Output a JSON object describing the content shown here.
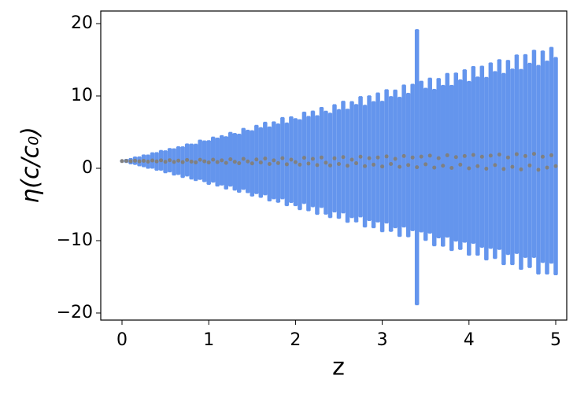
{
  "chart_data": {
    "type": "errorbar",
    "xlabel": "z",
    "ylabel": "η(c/c₀)",
    "xlim": [
      -0.245,
      5.127
    ],
    "ylim": [
      -20.98,
      21.74
    ],
    "xticks": [
      0,
      1,
      2,
      3,
      4,
      5
    ],
    "yticks": [
      -20,
      -10,
      0,
      10,
      20
    ],
    "error_color": "#6495ed",
    "marker_color": "#808080",
    "x": [
      0,
      0.05,
      0.1,
      0.15,
      0.2,
      0.25,
      0.3,
      0.35,
      0.4,
      0.45,
      0.5,
      0.55,
      0.6,
      0.65,
      0.7,
      0.75,
      0.8,
      0.85,
      0.9,
      0.95,
      1,
      1.05,
      1.1,
      1.15,
      1.2,
      1.25,
      1.3,
      1.35,
      1.4,
      1.45,
      1.5,
      1.55,
      1.6,
      1.65,
      1.7,
      1.75,
      1.8,
      1.85,
      1.9,
      1.95,
      2,
      2.05,
      2.1,
      2.15,
      2.2,
      2.25,
      2.3,
      2.35,
      2.4,
      2.45,
      2.5,
      2.55,
      2.6,
      2.65,
      2.7,
      2.75,
      2.8,
      2.85,
      2.9,
      2.95,
      3,
      3.05,
      3.1,
      3.15,
      3.2,
      3.25,
      3.3,
      3.35,
      3.4,
      3.45,
      3.5,
      3.55,
      3.6,
      3.65,
      3.7,
      3.75,
      3.8,
      3.85,
      3.9,
      3.95,
      4,
      4.05,
      4.1,
      4.15,
      4.2,
      4.25,
      4.3,
      4.35,
      4.4,
      4.45,
      4.5,
      4.55,
      4.6,
      4.65,
      4.7,
      4.75,
      4.8,
      4.85,
      4.9,
      4.95,
      5
    ],
    "values": [
      1,
      1.02,
      0.98,
      1.05,
      0.96,
      1.03,
      0.92,
      1.08,
      0.95,
      1.1,
      0.9,
      1.12,
      0.88,
      1.06,
      0.85,
      1.15,
      0.93,
      0.82,
      1.18,
      0.97,
      0.8,
      1.2,
      0.86,
      1.1,
      0.75,
      1.25,
      0.9,
      0.7,
      1.3,
      0.95,
      0.68,
      1.22,
      0.8,
      1.35,
      0.6,
      1.1,
      0.72,
      1.4,
      0.55,
      1.2,
      0.85,
      0.5,
      1.45,
      0.65,
      1.3,
      0.45,
      1.5,
      0.78,
      0.4,
      1.38,
      0.6,
      1.55,
      0.35,
      1.2,
      0.7,
      1.6,
      0.3,
      1.4,
      0.5,
      1.5,
      0.25,
      1.65,
      0.6,
      1.3,
      0.2,
      1.7,
      0.45,
      1.5,
      0.15,
      1.62,
      0.55,
      1.75,
      0.1,
      1.4,
      0.35,
      1.8,
      0.05,
      1.55,
      0.5,
      1.7,
      0,
      1.85,
      0.3,
      1.6,
      -0.05,
      1.75,
      0.45,
      1.9,
      -0.1,
      1.5,
      0.2,
      1.95,
      -0.15,
      1.7,
      0.4,
      2,
      -0.2,
      1.6,
      0.1,
      1.8,
      0.3
    ],
    "errors": [
      0.05,
      0.2,
      0.35,
      0.5,
      0.6,
      0.8,
      0.9,
      1.05,
      1.2,
      1.35,
      1.5,
      1.6,
      1.8,
      1.9,
      2.1,
      2.2,
      2.4,
      2.5,
      2.7,
      2.8,
      3,
      3.1,
      3.3,
      3.4,
      3.6,
      3.7,
      3.9,
      4,
      4.2,
      4.3,
      4.5,
      4.7,
      4.8,
      5,
      5.1,
      5.3,
      5.4,
      5.6,
      5.7,
      5.9,
      6,
      6.2,
      6.3,
      6.5,
      6.6,
      6.8,
      6.9,
      7.1,
      7.2,
      7.4,
      7.5,
      7.7,
      7.8,
      8,
      8.1,
      8.3,
      8.4,
      8.6,
      8.7,
      8.9,
      9,
      9.2,
      9.3,
      9.5,
      9.6,
      9.8,
      9.9,
      10.1,
      19,
      10.4,
      10.5,
      10.7,
      10.8,
      11,
      11.1,
      11.3,
      11.4,
      11.6,
      11.7,
      11.9,
      12,
      12.2,
      12.3,
      12.5,
      12.6,
      12.8,
      12.9,
      13.1,
      13.2,
      13.4,
      13.5,
      13.7,
      13.8,
      14,
      14.1,
      14.3,
      14.4,
      14.6,
      14.7,
      14.9,
      15
    ]
  }
}
